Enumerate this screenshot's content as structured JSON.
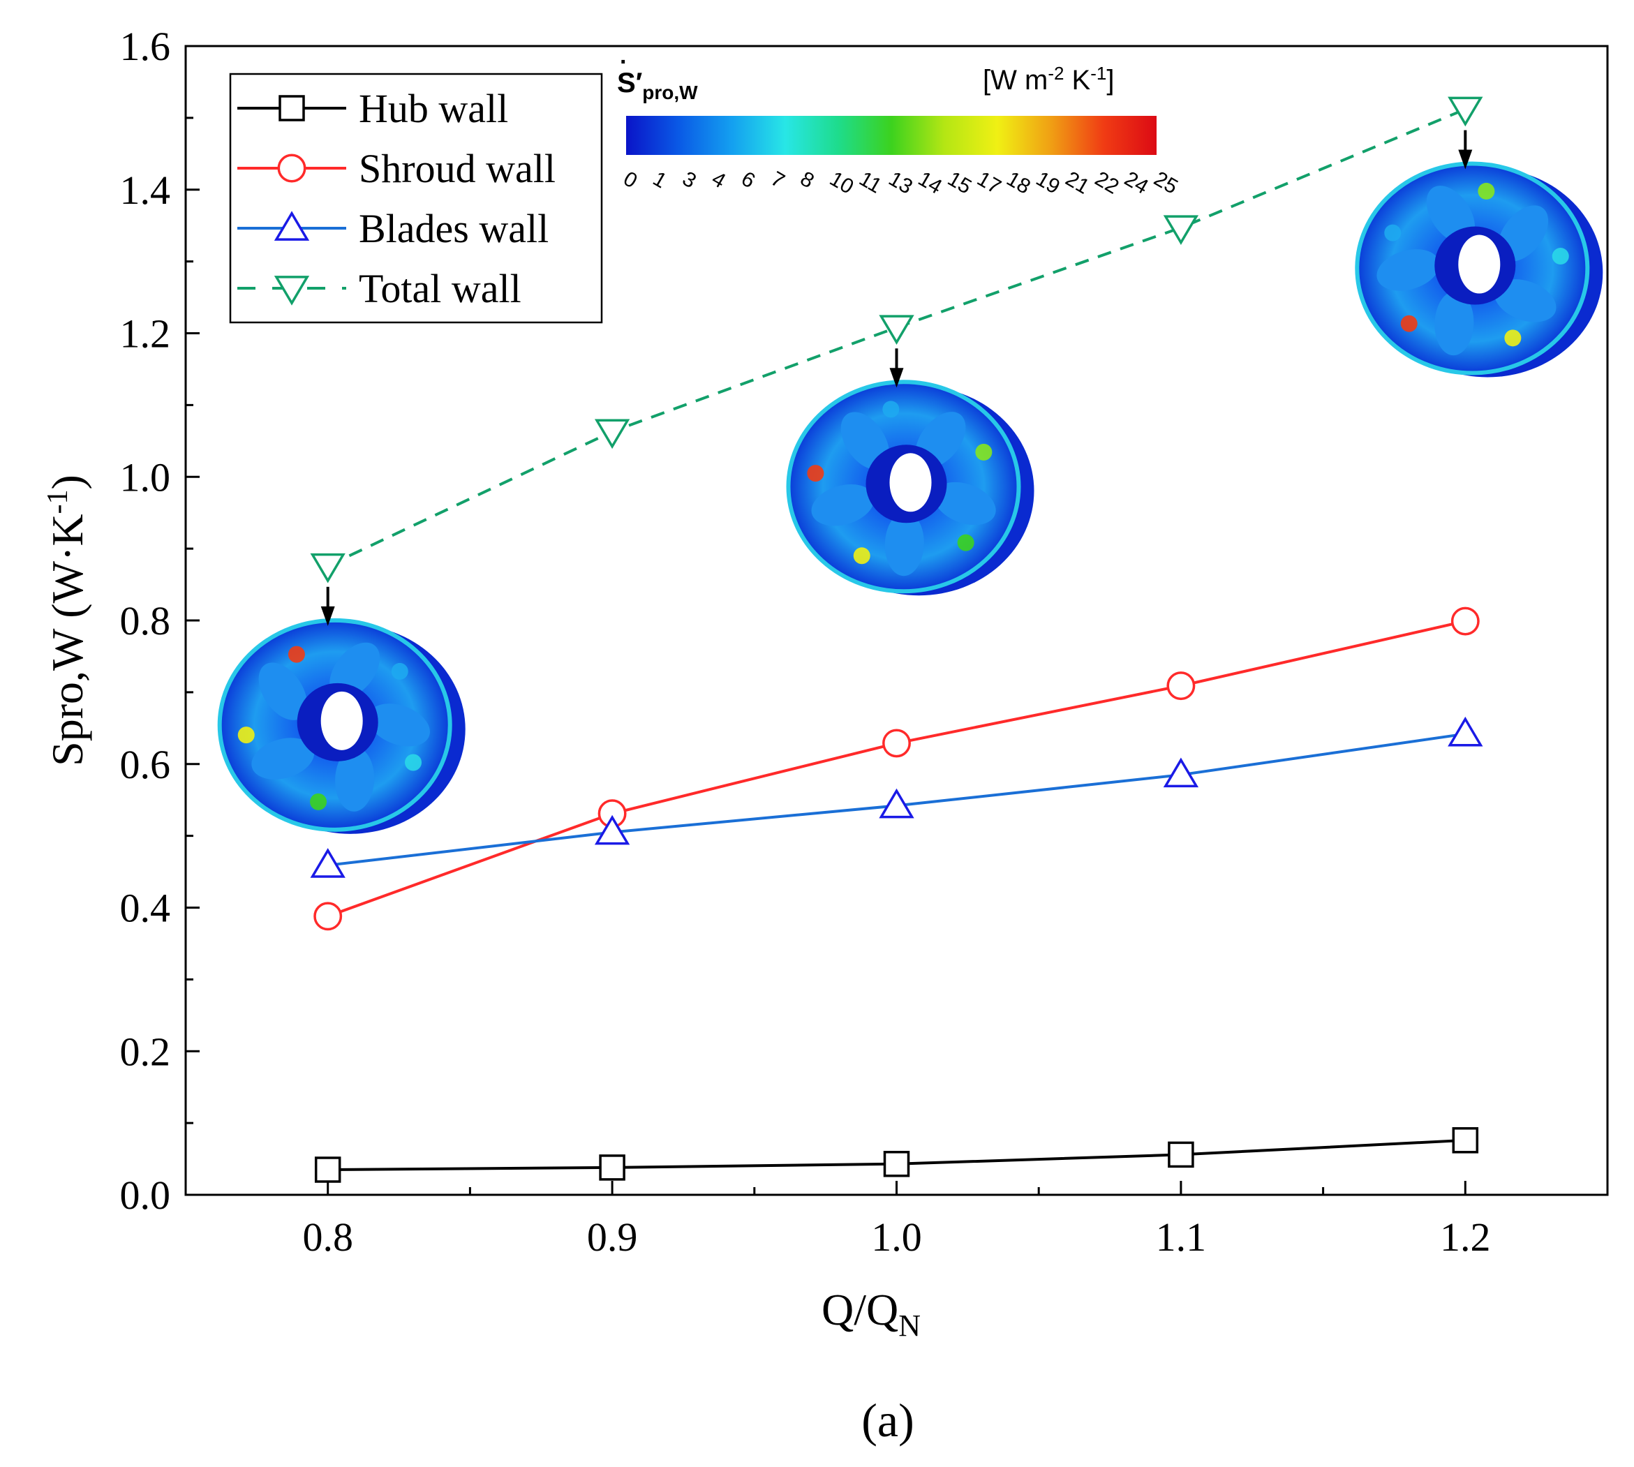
{
  "chart_data": {
    "type": "line",
    "title": "",
    "xlabel": "Q/Q",
    "xlabel_sub": "N",
    "ylabel": "Spro,W (W·K",
    "ylabel_sup": "-1",
    "ylabel_close": ")",
    "xlim": [
      0.75,
      1.25
    ],
    "ylim": [
      0.0,
      1.6
    ],
    "x": [
      0.8,
      0.9,
      1.0,
      1.1,
      1.2
    ],
    "x_tick_labels": [
      "0.8",
      "0.9",
      "1.0",
      "1.1",
      "1.2"
    ],
    "y_ticks": [
      0.0,
      0.2,
      0.4,
      0.6,
      0.8,
      1.0,
      1.2,
      1.4,
      1.6
    ],
    "y_tick_labels": [
      "0.0",
      "0.2",
      "0.4",
      "0.6",
      "0.8",
      "1.0",
      "1.2",
      "1.4",
      "1.6"
    ],
    "series": [
      {
        "name": "Hub wall",
        "marker": "square",
        "line": "solid",
        "color": "#000000",
        "values": [
          0.035,
          0.038,
          0.043,
          0.056,
          0.076
        ]
      },
      {
        "name": "Shroud wall",
        "marker": "circle",
        "line": "solid",
        "color": "#ff2a2a",
        "values": [
          0.388,
          0.531,
          0.629,
          0.709,
          0.799
        ]
      },
      {
        "name": "Blades wall",
        "marker": "triangle-up",
        "line": "solid",
        "color": "#1a6fd6",
        "marker_color": "#1a1ae6",
        "values": [
          0.459,
          0.505,
          0.542,
          0.585,
          0.642
        ]
      },
      {
        "name": "Total wall",
        "marker": "triangle-down",
        "line": "dashed",
        "color": "#12a06a",
        "values": [
          0.876,
          1.063,
          1.208,
          1.347,
          1.512
        ]
      }
    ],
    "legend": "top-left",
    "colorbar": {
      "label_main": "S",
      "label_sub": "pro,W",
      "unit_base": "[W m",
      "unit_exp1": "-2",
      "unit_mid": " K",
      "unit_exp2": "-1",
      "unit_close": "]",
      "ticks": [
        "0",
        "1",
        "3",
        "4",
        "6",
        "7",
        "8",
        "10",
        "11",
        "13",
        "14",
        "15",
        "17",
        "18",
        "19",
        "21",
        "22",
        "24",
        "25"
      ],
      "colors": [
        "#0a14c8",
        "#0a5ae6",
        "#14a0f0",
        "#28e6e6",
        "#1edc8c",
        "#3cd21e",
        "#b4e614",
        "#f0f014",
        "#f0a014",
        "#f03c14",
        "#dc0a14"
      ]
    },
    "impeller_insets": [
      {
        "x": 0.8,
        "y": 0.876
      },
      {
        "x": 1.0,
        "y": 1.208
      },
      {
        "x": 1.2,
        "y": 1.512
      }
    ],
    "panel_label": "(a)"
  }
}
